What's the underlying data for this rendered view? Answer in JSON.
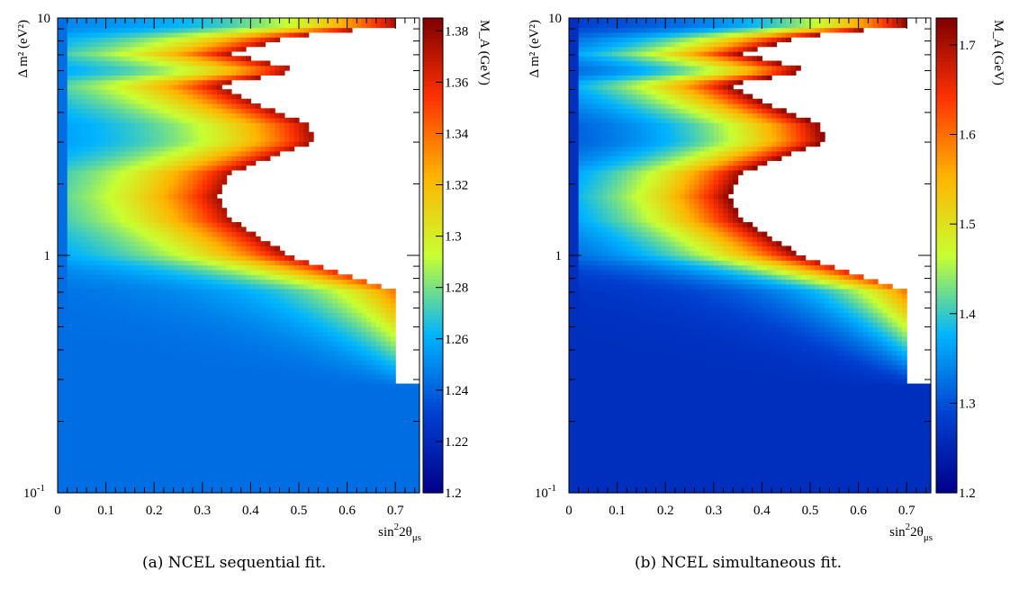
{
  "chart_data": [
    {
      "type": "heatmap",
      "caption": "(a) NCEL sequential fit.",
      "xlabel_main": "sin",
      "xlabel_sup": "2",
      "xlabel_theta": "2θ",
      "xlabel_sub": "μs",
      "ylabel": "Δ m² (eV²)",
      "zlabel": "M_A (GeV)",
      "xlim": [
        0,
        0.75
      ],
      "ylim": [
        0.1,
        10
      ],
      "y_scale": "log",
      "zlim": [
        1.2,
        1.385
      ],
      "x_ticks": [
        "0",
        "0.1",
        "0.2",
        "0.3",
        "0.4",
        "0.5",
        "0.6",
        "0.7"
      ],
      "x_tick_values": [
        0,
        0.1,
        0.2,
        0.3,
        0.4,
        0.5,
        0.6,
        0.7
      ],
      "y_ticks": [
        "10",
        "1"
      ],
      "y_tick_values": [
        10,
        1
      ],
      "y_tick_bottom_base": "10",
      "y_tick_bottom_exp": "-1",
      "z_ticks": [
        "1.2",
        "1.22",
        "1.24",
        "1.26",
        "1.28",
        "1.3",
        "1.32",
        "1.34",
        "1.36",
        "1.38"
      ],
      "z_tick_values": [
        1.2,
        1.22,
        1.24,
        1.26,
        1.28,
        1.3,
        1.32,
        1.34,
        1.36,
        1.38
      ],
      "base_value": 1.243,
      "peak_value": 1.375,
      "ridge": {
        "log10_dm2": [
          -0.15,
          0.0,
          0.15,
          0.25,
          0.35,
          0.48,
          0.55,
          0.65,
          0.72,
          0.78,
          0.85,
          0.92,
          0.97
        ],
        "sin2": [
          0.7,
          0.48,
          0.36,
          0.33,
          0.36,
          0.53,
          0.52,
          0.4,
          0.33,
          0.5,
          0.36,
          0.48,
          0.7
        ]
      },
      "excluded_region": "white",
      "colormap": [
        "#00008a",
        "#0040d0",
        "#00b4ff",
        "#c8ff32",
        "#ffb400",
        "#ff3200",
        "#7f0000"
      ]
    },
    {
      "type": "heatmap",
      "caption": "(b) NCEL simultaneous fit.",
      "xlabel_main": "sin",
      "xlabel_sup": "2",
      "xlabel_theta": "2θ",
      "xlabel_sub": "μs",
      "ylabel": "Δ m² (eV²)",
      "zlabel": "M_A (GeV)",
      "xlim": [
        0,
        0.75
      ],
      "ylim": [
        0.1,
        10
      ],
      "y_scale": "log",
      "zlim": [
        1.2,
        1.73
      ],
      "x_ticks": [
        "0",
        "0.1",
        "0.2",
        "0.3",
        "0.4",
        "0.5",
        "0.6",
        "0.7"
      ],
      "x_tick_values": [
        0,
        0.1,
        0.2,
        0.3,
        0.4,
        0.5,
        0.6,
        0.7
      ],
      "y_ticks": [
        "10",
        "1"
      ],
      "y_tick_values": [
        10,
        1
      ],
      "y_tick_bottom_base": "10",
      "y_tick_bottom_exp": "-1",
      "z_ticks": [
        "1.2",
        "1.3",
        "1.4",
        "1.5",
        "1.6",
        "1.7"
      ],
      "z_tick_values": [
        1.2,
        1.3,
        1.4,
        1.5,
        1.6,
        1.7
      ],
      "base_value": 1.265,
      "peak_value": 1.72,
      "ridge": {
        "log10_dm2": [
          -0.15,
          0.0,
          0.15,
          0.25,
          0.35,
          0.48,
          0.55,
          0.65,
          0.72,
          0.78,
          0.85,
          0.92,
          0.97
        ],
        "sin2": [
          0.7,
          0.48,
          0.36,
          0.33,
          0.36,
          0.53,
          0.52,
          0.4,
          0.33,
          0.5,
          0.36,
          0.48,
          0.7
        ]
      },
      "excluded_region": "white",
      "colormap": [
        "#00008a",
        "#0040d0",
        "#00b4ff",
        "#c8ff32",
        "#ffb400",
        "#ff3200",
        "#7f0000"
      ]
    }
  ]
}
